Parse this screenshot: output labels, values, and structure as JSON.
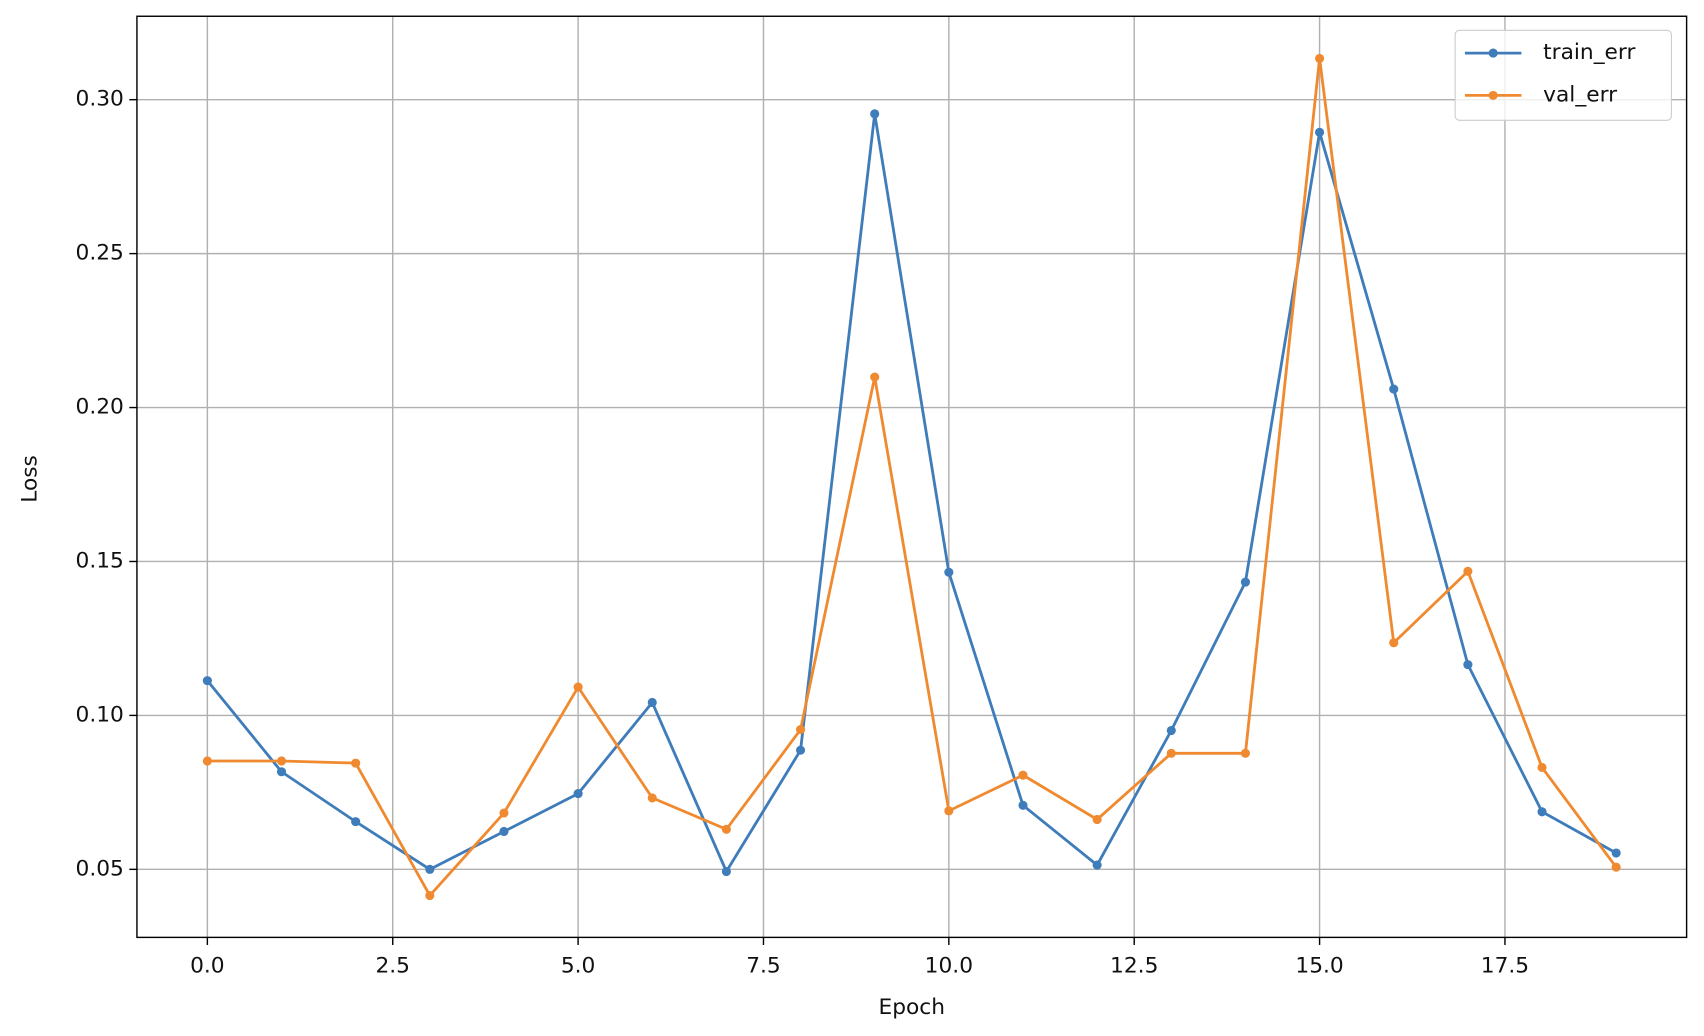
{
  "chart_data": {
    "type": "line",
    "x_label": "Epoch",
    "y_label": "Loss",
    "x": [
      0,
      1,
      2,
      3,
      4,
      5,
      6,
      7,
      8,
      9,
      10,
      11,
      12,
      13,
      14,
      15,
      16,
      17,
      18,
      19
    ],
    "series": [
      {
        "name": "train_err",
        "color": "#3f7cba",
        "values": [
          0.1113,
          0.0817,
          0.0655,
          0.05,
          0.0623,
          0.0746,
          0.1042,
          0.0493,
          0.0887,
          0.2954,
          0.1465,
          0.0708,
          0.0514,
          0.0951,
          0.1433,
          0.2894,
          0.206,
          0.1165,
          0.0687,
          0.0553
        ]
      },
      {
        "name": "val_err",
        "color": "#f08a30",
        "values": [
          0.0852,
          0.0852,
          0.0845,
          0.0415,
          0.0683,
          0.1092,
          0.0732,
          0.063,
          0.0954,
          0.2099,
          0.069,
          0.0806,
          0.0662,
          0.0877,
          0.0877,
          0.3134,
          0.1236,
          0.1468,
          0.0831,
          0.0507
        ]
      }
    ],
    "xlim": [
      -0.95,
      19.95
    ],
    "xticks": [
      {
        "value": 0,
        "label": "0.0"
      },
      2.5,
      {
        "value": 5,
        "label": "5.0"
      },
      7.5,
      {
        "value": 10,
        "label": "10.0"
      },
      12.5,
      {
        "value": 15,
        "label": "15.0"
      },
      17.5
    ],
    "ylim": [
      0.0279,
      0.3271
    ],
    "yticks": [
      0.05,
      {
        "value": 0.1,
        "label": "0.10"
      },
      0.15,
      {
        "value": 0.2,
        "label": "0.20"
      },
      0.25,
      {
        "value": 0.3,
        "label": "0.30"
      }
    ],
    "grid": true,
    "legend": "upper right"
  }
}
